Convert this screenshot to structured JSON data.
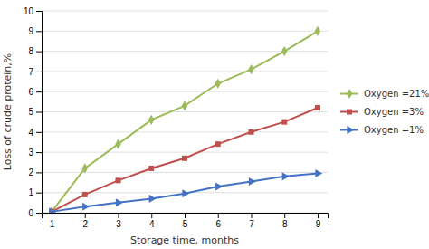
{
  "chart_data": {
    "type": "line",
    "x": [
      1,
      2,
      3,
      4,
      5,
      6,
      7,
      8,
      9
    ],
    "series": [
      {
        "name": "Oxygen =21%",
        "color": "#9BBB59",
        "marker": "diamond",
        "values": [
          0.05,
          2.2,
          3.4,
          4.6,
          5.3,
          6.4,
          7.1,
          8.0,
          9.0
        ]
      },
      {
        "name": "Oxygen =3%",
        "color": "#C0504D",
        "marker": "square",
        "values": [
          0.05,
          0.9,
          1.6,
          2.2,
          2.7,
          3.4,
          4.0,
          4.5,
          5.2
        ]
      },
      {
        "name": "Oxygen =1%",
        "color": "#4472C4",
        "marker": "triangle-right",
        "values": [
          0.05,
          0.3,
          0.5,
          0.7,
          0.95,
          1.3,
          1.55,
          1.8,
          1.95
        ]
      }
    ],
    "xlabel": "Storage time, months",
    "ylabel": "Loss of crude protein,%",
    "xlim": [
      0.7,
      9.3
    ],
    "ylim": [
      0,
      10
    ],
    "xticks": [
      1,
      2,
      3,
      4,
      5,
      6,
      7,
      8,
      9
    ],
    "yticks": [
      0,
      1,
      2,
      3,
      4,
      5,
      6,
      7,
      8,
      9,
      10
    ],
    "grid": "y",
    "legend": "right"
  }
}
